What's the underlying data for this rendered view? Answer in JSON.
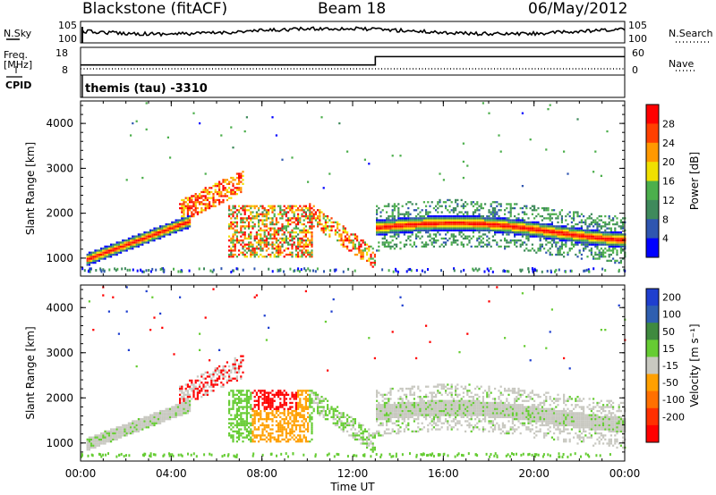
{
  "header": {
    "station": "Blackstone (fitACF)",
    "beam": "Beam 18",
    "date": "06/May/2012"
  },
  "side_labels": {
    "nsky": "N.Sky",
    "nsearch": "N.Search",
    "freq": "Freq.",
    "mhz": "[MHz]",
    "nave": "Nave",
    "cpid": "CPID"
  },
  "cpid_text": "themis (tau) -3310",
  "colors": {
    "power": [
      "#0000ff",
      "#2f56b0",
      "#3f8a5c",
      "#4caf4c",
      "#f0e000",
      "#ff9900",
      "#ff4000",
      "#ff0000"
    ],
    "velocity_pos": [
      "#1f3fcf",
      "#2f5fb0",
      "#3f8a3f",
      "#66cc33"
    ],
    "velocity_gray": "#c8c8c0",
    "velocity_neg": [
      "#ffa000",
      "#ff7000",
      "#ff3000",
      "#ff0000"
    ]
  },
  "chart_data": [
    {
      "type": "line",
      "panel": "noise",
      "left_ticks": [
        "10^5",
        "10^0"
      ],
      "right_ticks": [
        "10^5",
        "10^0"
      ]
    },
    {
      "type": "line",
      "panel": "frequency",
      "left_ticks": [
        "18",
        "8"
      ],
      "right_ticks": [
        "60",
        "0"
      ],
      "freq_segments": [
        {
          "from": "00:00",
          "to": "13:00",
          "value": 10.8
        },
        {
          "from": "13:00",
          "to": "24:00",
          "value": 15.7
        }
      ]
    },
    {
      "type": "heatmap",
      "panel": "power",
      "ylabel": "Slant Range [km]",
      "yticks": [
        1000,
        2000,
        3000,
        4000
      ],
      "ylim": [
        600,
        4500
      ],
      "xticks": [
        "00:00",
        "04:00",
        "08:00",
        "12:00",
        "16:00",
        "20:00",
        "00:00"
      ],
      "colorbar": {
        "label": "Power [dB]",
        "ticks": [
          4,
          8,
          12,
          16,
          20,
          24,
          28
        ]
      }
    },
    {
      "type": "heatmap",
      "panel": "velocity",
      "ylabel": "Slant Range [km]",
      "yticks": [
        1000,
        2000,
        3000,
        4000
      ],
      "ylim": [
        600,
        4500
      ],
      "xticks": [
        "00:00",
        "04:00",
        "08:00",
        "12:00",
        "16:00",
        "20:00",
        "00:00"
      ],
      "xlabel": "Time UT",
      "colorbar": {
        "label": "Velocity [m s⁻¹]",
        "ticks": [
          200,
          100,
          50,
          15,
          -15,
          -50,
          -100,
          -200
        ]
      }
    }
  ]
}
